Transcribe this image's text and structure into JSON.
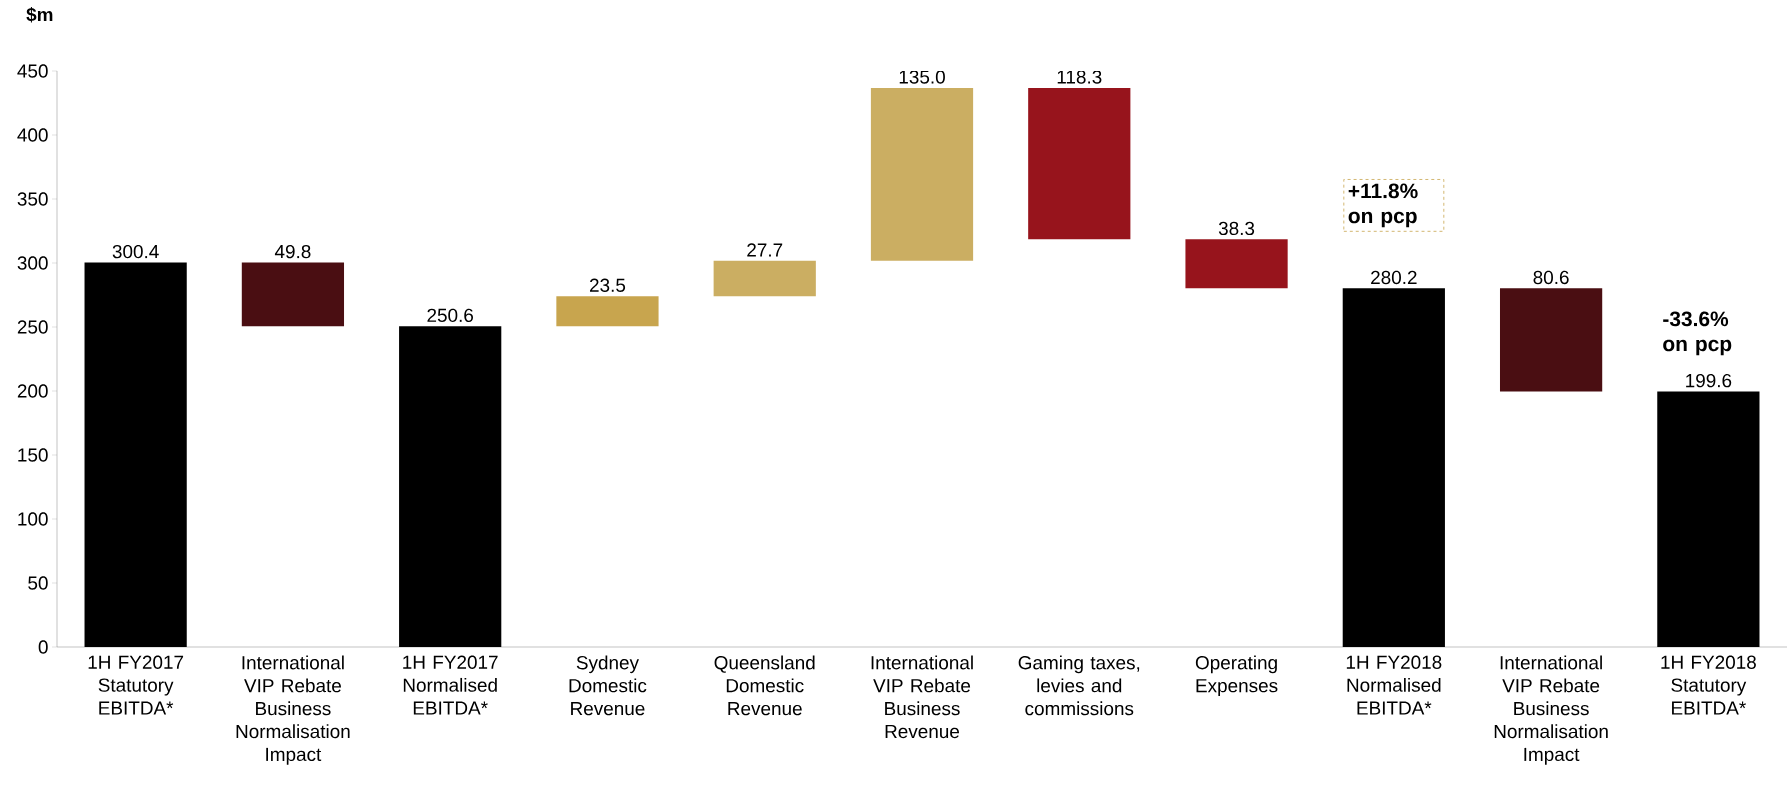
{
  "chart_data": {
    "type": "bar",
    "ylabel": "$m",
    "categories": [
      "1H FY2017 Statutory EBITDA*",
      "International VIP Rebate Business Normalisation Impact",
      "1H FY2017 Normalised EBITDA*",
      "Sydney Domestic Revenue",
      "Queensland Domestic Revenue",
      "International VIP Rebate Business Revenue",
      "Gaming taxes, levies and commissions",
      "Operating Expenses",
      "1H FY2018 Normalised EBITDA*",
      "International VIP Rebate Business Normalisation Impact",
      "1H FY2018 Statutory EBITDA*"
    ],
    "values": [
      300.4,
      49.8,
      250.6,
      23.5,
      27.7,
      135.0,
      118.3,
      38.3,
      280.2,
      80.6,
      199.6
    ],
    "base": [
      0,
      250.6,
      0,
      250.6,
      274.1,
      301.8,
      318.5,
      280.2,
      0,
      199.6,
      0
    ],
    "value_labels": [
      "300.4",
      "49.8",
      "250.6",
      "23.5",
      "27.7",
      "135.0",
      "118.3",
      "38.3",
      "280.2",
      "80.6",
      "199.6"
    ],
    "colors": [
      "#000000",
      "#4a0e12",
      "#000000",
      "#c8a54e",
      "#cbae62",
      "#cbae62",
      "#97141c",
      "#97141c",
      "#000000",
      "#4a0e12",
      "#000000"
    ],
    "annotations": [
      "+11.8% on pcp",
      "-33.6% on pcp"
    ],
    "ylim": [
      0,
      450
    ],
    "yticks": [
      0,
      50,
      100,
      150,
      200,
      250,
      300,
      350,
      400,
      450
    ]
  }
}
